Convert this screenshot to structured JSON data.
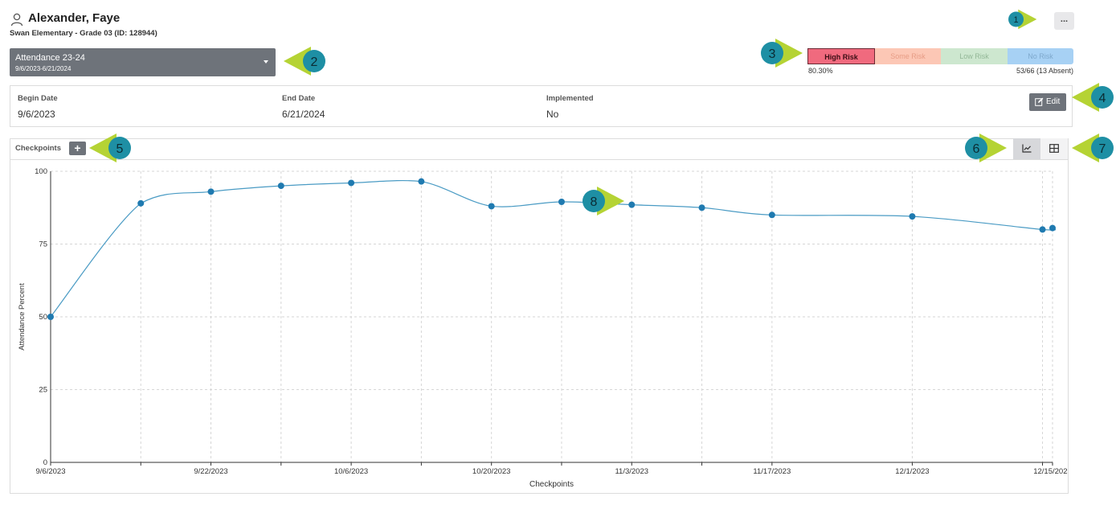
{
  "student": {
    "name": "Alexander, Faye",
    "subtitle": "Swan Elementary - Grade 03 (ID: 128944)",
    "more_label": "..."
  },
  "plan_select": {
    "title": "Attendance 23-24",
    "range": "9/6/2023-6/21/2024"
  },
  "risk": {
    "segments": [
      "High Risk",
      "Some Risk",
      "Low Risk",
      "No Risk"
    ],
    "percent": "80.30%",
    "absent_summary": "53/66 (13 Absent)",
    "colors": {
      "high": "#f06a7e",
      "some": "#fcc7b5",
      "low": "#cde7cf",
      "none": "#a7d1f4"
    }
  },
  "info": {
    "begin_label": "Begin Date",
    "begin_value": "9/6/2023",
    "end_label": "End Date",
    "end_value": "6/21/2024",
    "implemented_label": "Implemented",
    "implemented_value": "No",
    "edit_label": "Edit"
  },
  "checkpoints": {
    "label": "Checkpoints",
    "add_label": "+"
  },
  "callouts": [
    "1",
    "2",
    "3",
    "4",
    "5",
    "6",
    "7",
    "8"
  ],
  "chart_data": {
    "type": "line",
    "x": [
      "9/6/2023",
      "9/15/2023",
      "9/22/2023",
      "9/29/2023",
      "10/6/2023",
      "10/13/2023",
      "10/20/2023",
      "10/27/2023",
      "11/3/2023",
      "11/10/2023",
      "11/17/2023",
      "12/1/2023",
      "12/14/2023",
      "12/15/2023"
    ],
    "series": [
      {
        "values": [
          50,
          89,
          93,
          95,
          96,
          96.5,
          88,
          89.5,
          88.5,
          87.5,
          85,
          84.5,
          80,
          80.5
        ]
      }
    ],
    "ticks_x": [
      "9/6/2023",
      "9/22/2023",
      "10/6/2023",
      "10/20/2023",
      "11/3/2023",
      "11/17/2023",
      "12/1/2023",
      "12/15/2023"
    ],
    "ticks_y": [
      "0",
      "25",
      "50",
      "75",
      "100"
    ],
    "xlabel": "Checkpoints",
    "ylabel": "Attendance Percent",
    "ylim": [
      0,
      100
    ],
    "grid": true,
    "line_color": "#4a9bc4",
    "point_color": "#1f7ab0"
  }
}
